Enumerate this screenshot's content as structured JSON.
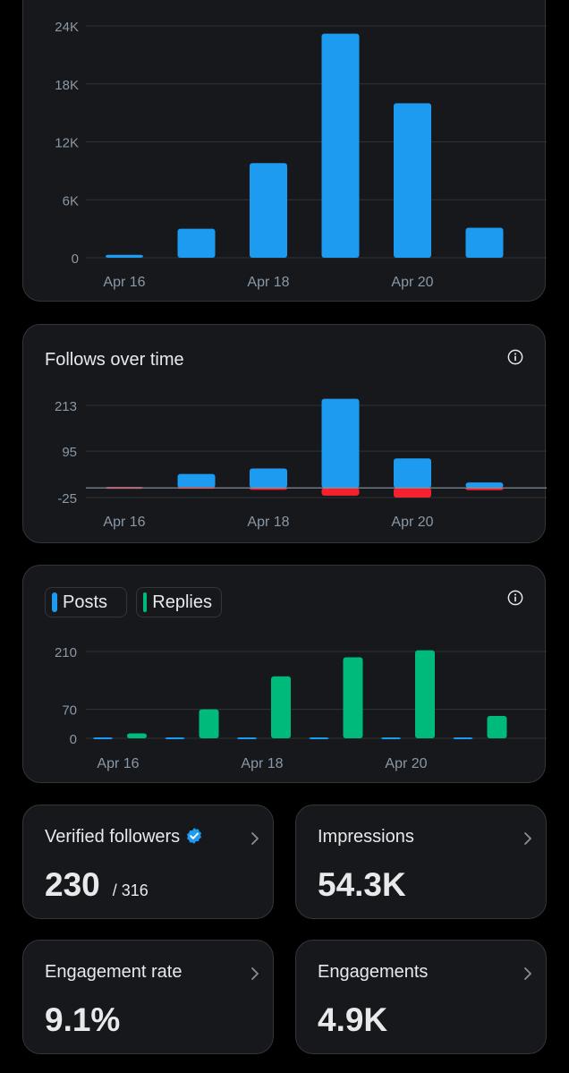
{
  "impressions_chart": {
    "chart_data": {
      "type": "bar",
      "x_tick_labels": [
        "Apr 16",
        "Apr 18",
        "Apr 20"
      ],
      "y_ticks": [
        0,
        6000,
        12000,
        18000,
        24000
      ],
      "y_tick_labels": [
        "0",
        "6K",
        "12K",
        "18K",
        "24K"
      ],
      "ylim": [
        0,
        24000
      ],
      "series": [
        {
          "values": [
            300,
            3000,
            9800,
            23200,
            16000,
            3100
          ],
          "color": "#1d9bf0"
        }
      ],
      "grid": true
    }
  },
  "follows_chart": {
    "title": "Follows over time",
    "info_icon": "info-circle-icon",
    "chart_data": {
      "type": "bar",
      "stacked": true,
      "x_tick_labels": [
        "Apr 16",
        "Apr 18",
        "Apr 20"
      ],
      "y_ticks": [
        -25,
        95,
        213
      ],
      "y_tick_labels": [
        "-25",
        "95",
        "213"
      ],
      "ylim": [
        -25,
        213
      ],
      "series": [
        {
          "values": [
            4,
            36,
            50,
            230,
            76,
            14
          ],
          "color": "#1d9bf0"
        },
        {
          "values": [
            0,
            -3,
            -5,
            -20,
            -25,
            -6
          ],
          "color": "#f4212e"
        }
      ],
      "grid": true
    }
  },
  "posts_chart": {
    "legend": [
      {
        "label": "Posts",
        "color": "#1d9bf0"
      },
      {
        "label": "Replies",
        "color": "#00ba7c"
      }
    ],
    "info_icon": "info-circle-icon",
    "chart_data": {
      "type": "bar",
      "x_tick_labels": [
        "Apr 16",
        "Apr 18",
        "Apr 20"
      ],
      "y_ticks": [
        0,
        70,
        210
      ],
      "y_tick_labels": [
        "0",
        "70",
        "210"
      ],
      "ylim": [
        0,
        210
      ],
      "series": [
        {
          "name": "Posts",
          "values": [
            0,
            1,
            1,
            1,
            1,
            1
          ],
          "color": "#1d9bf0"
        },
        {
          "name": "Replies",
          "values": [
            12,
            70,
            150,
            196,
            213,
            54
          ],
          "color": "#00ba7c"
        }
      ],
      "grid": true
    }
  },
  "stats": {
    "verified_followers": {
      "label": "Verified followers",
      "value": "230",
      "sub": "/ 316",
      "icon": "verified-badge-icon"
    },
    "impressions": {
      "label": "Impressions",
      "value": "54.3K"
    },
    "engagement_rate": {
      "label": "Engagement rate",
      "value": "9.1%"
    },
    "engagements": {
      "label": "Engagements",
      "value": "4.9K"
    }
  },
  "colors": {
    "background": "#000000",
    "card": "#16181c",
    "border": "#333639",
    "blue": "#1d9bf0",
    "red": "#f4212e",
    "green": "#00ba7c"
  }
}
